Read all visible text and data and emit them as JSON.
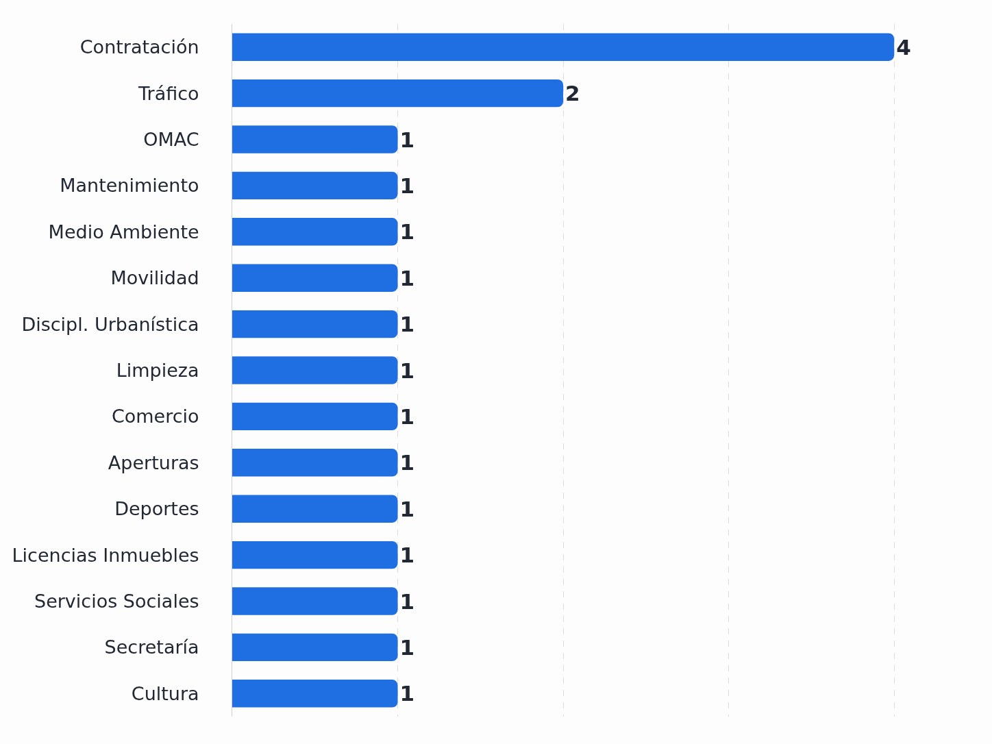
{
  "chart_data": {
    "type": "bar",
    "orientation": "horizontal",
    "categories": [
      "Contratación",
      "Tráfico",
      "OMAC",
      "Mantenimiento",
      "Medio Ambiente",
      "Movilidad",
      "Discipl. Urbanística",
      "Limpieza",
      "Comercio",
      "Aperturas",
      "Deportes",
      "Licencias Inmuebles",
      "Servicios Sociales",
      "Secretaría",
      "Cultura"
    ],
    "values": [
      4,
      2,
      1,
      1,
      1,
      1,
      1,
      1,
      1,
      1,
      1,
      1,
      1,
      1,
      1
    ],
    "color": "#1f6fe3",
    "grid": "x",
    "tick_labels": "y",
    "data_labels": true
  }
}
